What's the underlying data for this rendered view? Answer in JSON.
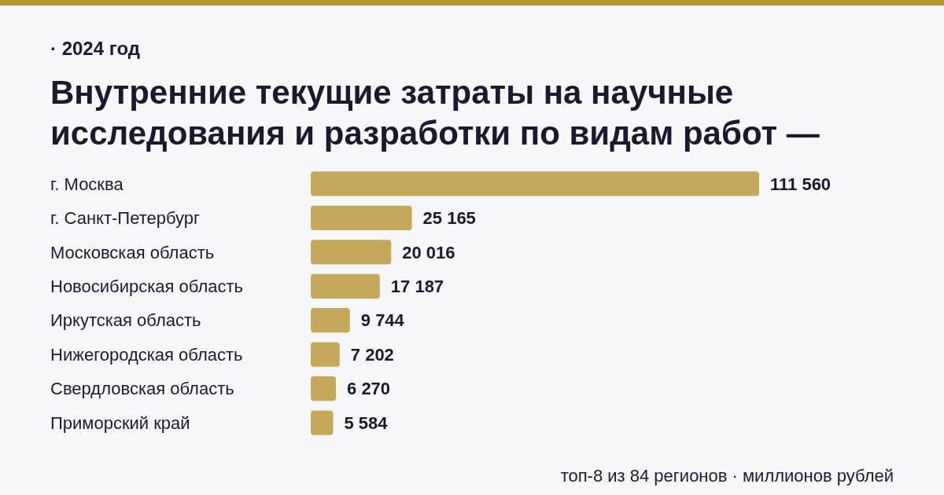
{
  "chart_data": {
    "type": "bar",
    "orientation": "horizontal",
    "subtitle": "· 2024 год",
    "title": "Внутренние текущие затраты на научные исследования и разработки по видам работ —",
    "categories": [
      "г. Москва",
      "г. Санкт-Петербург",
      "Московская область",
      "Новосибирская область",
      "Иркутская область",
      "Нижегородская область",
      "Свердловская область",
      "Приморский край"
    ],
    "values": [
      111560,
      25165,
      20016,
      17187,
      9744,
      7202,
      6270,
      5584
    ],
    "value_labels": [
      "111 560",
      "25 165",
      "20 016",
      "17 187",
      "9 744",
      "7 202",
      "6 270",
      "5 584"
    ],
    "color": "#c4a95b",
    "annotations": [
      "топ-8 из 84 регионов · миллионов рублей"
    ]
  }
}
